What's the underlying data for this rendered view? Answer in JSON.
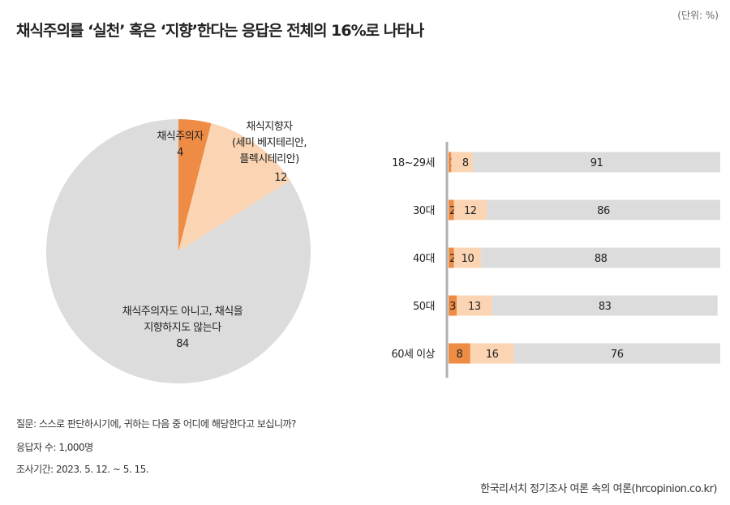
{
  "chart_data": [
    {
      "type": "pie",
      "title": "채식주의를 ‘실천’ 혹은 ‘지향’한다는 응답은 전체의 16%로 나타나",
      "unit": "(단위: %)",
      "slices": [
        {
          "label_lines": [
            "채식주의자"
          ],
          "value": 4,
          "color": "#ee8c45"
        },
        {
          "label_lines": [
            "채식지향자",
            "(세미 베지테리안,",
            "플렉시테리안)"
          ],
          "value": 12,
          "color": "#fbd5b3"
        },
        {
          "label_lines": [
            "채식주의자도 아니고, 채식을",
            "지향하지도 않는다"
          ],
          "value": 84,
          "color": "#dcdcdc"
        }
      ]
    },
    {
      "type": "bar",
      "orientation": "horizontal-stacked",
      "categories": [
        "18~29세",
        "30대",
        "40대",
        "50대",
        "60세 이상"
      ],
      "series": [
        {
          "name": "채식주의자",
          "values": [
            1,
            2,
            2,
            3,
            8
          ],
          "color": "#ee8c45"
        },
        {
          "name": "채식지향자",
          "values": [
            8,
            12,
            10,
            13,
            16
          ],
          "color": "#fbd5b3"
        },
        {
          "name": "채식주의자도 아니고, 채식을 지향하지도 않는다",
          "values": [
            91,
            86,
            88,
            83,
            76
          ],
          "color": "#dcdcdc"
        }
      ],
      "xlim": [
        0,
        100
      ]
    }
  ],
  "notes": {
    "question": "질문: 스스로 판단하시기에, 귀하는 다음 중 어디에 해당한다고 보십니까?",
    "respondents": "응답자 수: 1,000명",
    "period": "조사기간: 2023. 5. 12. ~ 5. 15."
  },
  "source": "한국리서치 정기조사 여론 속의 여론(hrcopinion.co.kr)"
}
